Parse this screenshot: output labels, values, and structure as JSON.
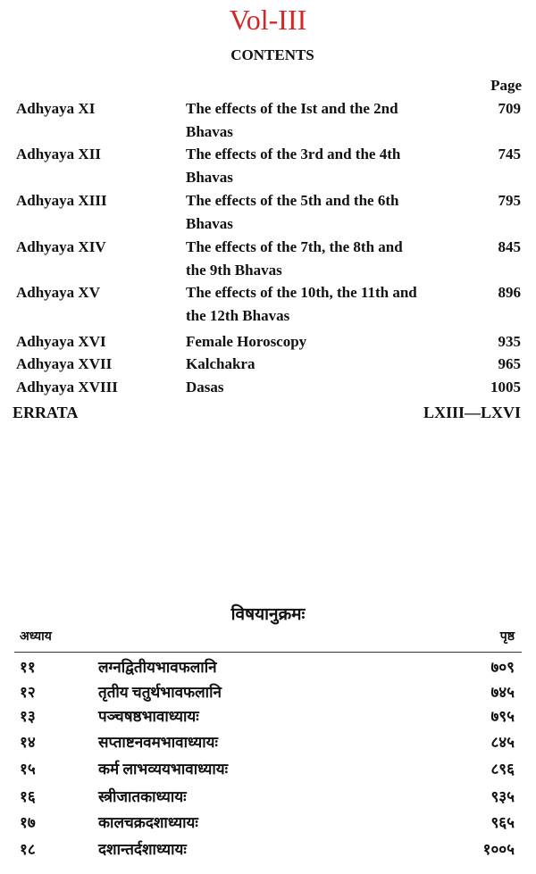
{
  "title": "Vol-III",
  "heading": "CONTENTS",
  "page_label": "Page",
  "entries": [
    {
      "chapter": "Adhyaya XI",
      "title_lines": [
        "The effects of the Ist and the 2nd",
        "Bhavas"
      ],
      "page": 709
    },
    {
      "chapter": "Adhyaya XII",
      "title_lines": [
        "The effects of the 3rd and the 4th",
        "Bhavas"
      ],
      "page": 745
    },
    {
      "chapter": "Adhyaya XIII",
      "title_lines": [
        "The effects of the 5th and the 6th",
        "Bhavas"
      ],
      "page": 795
    },
    {
      "chapter": "Adhyaya XIV",
      "title_lines": [
        "The effects of the 7th, the 8th and",
        "the 9th Bhavas"
      ],
      "page": 845
    },
    {
      "chapter": "Adhyaya XV",
      "title_lines": [
        "The effects of the 10th, the 11th and",
        "the 12th Bhavas"
      ],
      "page": 896
    },
    {
      "chapter": "Adhyaya XVI",
      "title_lines": [
        "Female Horoscopy"
      ],
      "page": 935
    },
    {
      "chapter": "Adhyaya XVII",
      "title_lines": [
        "Kalchakra"
      ],
      "page": 965
    },
    {
      "chapter": "Adhyaya XVIII",
      "title_lines": [
        "Dasas"
      ],
      "page": 1005
    }
  ],
  "errata": {
    "label": "ERRATA",
    "page": "LXIII—LXVI"
  },
  "hindi": {
    "heading": "विषयानुक्रमः",
    "col_left": "अध्याय",
    "col_right": "पृष्ठ",
    "rows": [
      {
        "num": "११",
        "title": "लग्नद्वितीयभावफलानि",
        "page": "७०९"
      },
      {
        "num": "१२",
        "title": "तृतीय चतुर्थभावफलानि",
        "page": "७४५"
      },
      {
        "num": "१३",
        "title": "पञ्चषष्ठभावाध्यायः",
        "page": "७९५"
      },
      {
        "num": "१४",
        "title": "सप्ताष्टनवमभावाध्यायः",
        "page": "८४५"
      },
      {
        "num": "१५",
        "title": "कर्म लाभव्ययभावाध्यायः",
        "page": "८९६"
      },
      {
        "num": "१६",
        "title": "स्त्रीजातकाध्यायः",
        "page": "९३५"
      },
      {
        "num": "१७",
        "title": "कालचक्रदशाध्यायः",
        "page": "९६५"
      },
      {
        "num": "१८",
        "title": "दशान्तर्दशाध्यायः",
        "page": "१००५"
      }
    ]
  }
}
